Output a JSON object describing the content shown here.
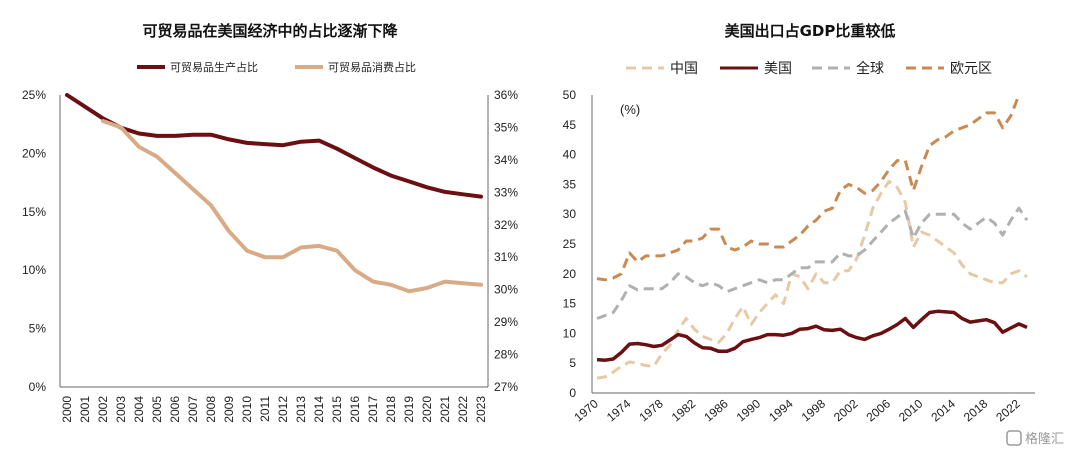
{
  "chart_data": [
    {
      "type": "line",
      "title": "可贸易品在美国经济中的占比逐渐下降",
      "x": [
        2000,
        2001,
        2002,
        2003,
        2004,
        2005,
        2006,
        2007,
        2008,
        2009,
        2010,
        2011,
        2012,
        2013,
        2014,
        2015,
        2016,
        2017,
        2018,
        2019,
        2020,
        2021,
        2022,
        2023
      ],
      "y_left": {
        "ylim": [
          0,
          25
        ],
        "ticks": [
          "0%",
          "5%",
          "10%",
          "15%",
          "20%",
          "25%"
        ]
      },
      "y_right": {
        "ylim": [
          27,
          36
        ],
        "ticks": [
          "27%",
          "28%",
          "29%",
          "30%",
          "31%",
          "32%",
          "33%",
          "34%",
          "35%",
          "36%"
        ]
      },
      "legend_position": "top-center",
      "series": [
        {
          "name": "可贸易品生产占比",
          "axis": "left",
          "color": "#6b0f12",
          "x": [
            2000,
            2001,
            2002,
            2003,
            2004,
            2005,
            2006,
            2007,
            2008,
            2009,
            2010,
            2011,
            2012,
            2013,
            2014,
            2015,
            2016,
            2017,
            2018,
            2019,
            2020,
            2021,
            2022,
            2023
          ],
          "values": [
            25.0,
            24.0,
            23.0,
            22.2,
            21.7,
            21.5,
            21.5,
            21.6,
            21.6,
            21.2,
            20.9,
            20.8,
            20.7,
            21.0,
            21.1,
            20.4,
            19.6,
            18.8,
            18.1,
            17.6,
            17.1,
            16.7,
            16.5,
            16.3
          ]
        },
        {
          "name": "可贸易品消费占比",
          "axis": "right",
          "color": "#d9aa86",
          "x": [
            2002,
            2003,
            2004,
            2005,
            2006,
            2007,
            2008,
            2009,
            2010,
            2011,
            2012,
            2013,
            2014,
            2015,
            2016,
            2017,
            2018,
            2019,
            2020,
            2021,
            2022,
            2023
          ],
          "values": [
            35.2,
            35.0,
            34.4,
            34.1,
            33.6,
            33.1,
            32.6,
            31.8,
            31.2,
            31.0,
            31.0,
            31.3,
            31.35,
            31.2,
            30.6,
            30.25,
            30.15,
            29.95,
            30.05,
            30.25,
            30.2,
            30.15
          ]
        }
      ]
    },
    {
      "type": "line",
      "title": "美国出口占GDP比重较低",
      "unit_label": "(%)",
      "x_ticks": [
        1970,
        1974,
        1978,
        1982,
        1986,
        1990,
        1994,
        1998,
        2002,
        2006,
        2010,
        2014,
        2018,
        2022
      ],
      "ylim": [
        0,
        50
      ],
      "y_ticks": [
        0,
        5,
        10,
        15,
        20,
        25,
        30,
        35,
        40,
        45,
        50
      ],
      "legend_position": "top-center",
      "series": [
        {
          "name": "中国",
          "color": "#e8c9a6",
          "dashed": true,
          "x": [
            1970,
            1971,
            1972,
            1973,
            1974,
            1975,
            1976,
            1977,
            1978,
            1979,
            1980,
            1981,
            1982,
            1983,
            1984,
            1985,
            1986,
            1987,
            1988,
            1989,
            1990,
            1991,
            1992,
            1993,
            1994,
            1995,
            1996,
            1997,
            1998,
            1999,
            2000,
            2001,
            2002,
            2003,
            2004,
            2005,
            2006,
            2007,
            2008,
            2009,
            2010,
            2011,
            2012,
            2013,
            2014,
            2015,
            2016,
            2017,
            2018,
            2019,
            2020,
            2021,
            2022,
            2023
          ],
          "values": [
            2.5,
            2.7,
            3.5,
            4.5,
            5.2,
            5.0,
            4.6,
            4.5,
            6.6,
            8.0,
            10.5,
            12.5,
            10.7,
            9.5,
            9.0,
            8.5,
            10.0,
            12.5,
            14.5,
            11.5,
            13.5,
            15.0,
            16.5,
            15.0,
            20.0,
            19.5,
            17.5,
            20.0,
            18.5,
            18.5,
            20.5,
            20.5,
            22.5,
            26.5,
            31.0,
            33.5,
            35.5,
            34.5,
            32.0,
            24.5,
            27.0,
            26.5,
            25.5,
            24.5,
            23.5,
            21.5,
            20.0,
            19.5,
            19.0,
            18.5,
            18.5,
            20.0,
            20.5,
            19.5
          ]
        },
        {
          "name": "美国",
          "color": "#6b0f12",
          "dashed": false,
          "x": [
            1970,
            1971,
            1972,
            1973,
            1974,
            1975,
            1976,
            1977,
            1978,
            1979,
            1980,
            1981,
            1982,
            1983,
            1984,
            1985,
            1986,
            1987,
            1988,
            1989,
            1990,
            1991,
            1992,
            1993,
            1994,
            1995,
            1996,
            1997,
            1998,
            1999,
            2000,
            2001,
            2002,
            2003,
            2004,
            2005,
            2006,
            2007,
            2008,
            2009,
            2010,
            2011,
            2012,
            2013,
            2014,
            2015,
            2016,
            2017,
            2018,
            2019,
            2020,
            2021,
            2022,
            2023
          ],
          "values": [
            5.6,
            5.5,
            5.7,
            6.8,
            8.2,
            8.3,
            8.1,
            7.8,
            8.0,
            8.9,
            9.8,
            9.5,
            8.4,
            7.6,
            7.5,
            7.0,
            7.0,
            7.5,
            8.6,
            9.0,
            9.3,
            9.8,
            9.8,
            9.7,
            10.0,
            10.7,
            10.8,
            11.2,
            10.6,
            10.5,
            10.7,
            9.8,
            9.3,
            9.0,
            9.6,
            10.0,
            10.7,
            11.5,
            12.5,
            11.0,
            12.3,
            13.5,
            13.7,
            13.6,
            13.5,
            12.5,
            11.9,
            12.1,
            12.3,
            11.8,
            10.2,
            10.9,
            11.6,
            11.0
          ]
        },
        {
          "name": "全球",
          "color": "#b0b0b0",
          "dashed": true,
          "x": [
            1970,
            1971,
            1972,
            1973,
            1974,
            1975,
            1976,
            1977,
            1978,
            1979,
            1980,
            1981,
            1982,
            1983,
            1984,
            1985,
            1986,
            1987,
            1988,
            1989,
            1990,
            1991,
            1992,
            1993,
            1994,
            1995,
            1996,
            1997,
            1998,
            1999,
            2000,
            2001,
            2002,
            2003,
            2004,
            2005,
            2006,
            2007,
            2008,
            2009,
            2010,
            2011,
            2012,
            2013,
            2014,
            2015,
            2016,
            2017,
            2018,
            2019,
            2020,
            2021,
            2022,
            2023
          ],
          "values": [
            12.5,
            13.0,
            13.5,
            15.5,
            18.0,
            17.3,
            17.5,
            17.5,
            17.5,
            18.5,
            20.0,
            19.5,
            18.5,
            18.0,
            18.5,
            18.0,
            17.0,
            17.5,
            18.0,
            18.5,
            19.0,
            18.5,
            19.0,
            19.0,
            20.0,
            21.0,
            21.0,
            22.0,
            22.0,
            22.0,
            23.5,
            23.0,
            23.0,
            24.0,
            25.5,
            27.0,
            28.5,
            29.5,
            30.5,
            26.0,
            28.5,
            30.0,
            30.0,
            30.0,
            30.0,
            28.5,
            27.5,
            28.5,
            29.5,
            28.5,
            26.5,
            29.0,
            31.0,
            29.0
          ]
        },
        {
          "name": "欧元区",
          "color": "#c98a52",
          "dashed": true,
          "x": [
            1970,
            1971,
            1972,
            1973,
            1974,
            1975,
            1976,
            1977,
            1978,
            1979,
            1980,
            1981,
            1982,
            1983,
            1984,
            1985,
            1986,
            1987,
            1988,
            1989,
            1990,
            1991,
            1992,
            1993,
            1994,
            1995,
            1996,
            1997,
            1998,
            1999,
            2000,
            2001,
            2002,
            2003,
            2004,
            2005,
            2006,
            2007,
            2008,
            2009,
            2010,
            2011,
            2012,
            2013,
            2014,
            2015,
            2016,
            2017,
            2018,
            2019,
            2020,
            2021,
            2022
          ],
          "values": [
            19.2,
            19.0,
            19.3,
            20.0,
            23.5,
            22.0,
            23.0,
            23.0,
            23.0,
            23.5,
            24.0,
            25.5,
            25.5,
            26.0,
            27.5,
            27.5,
            24.5,
            24.0,
            24.5,
            25.5,
            25.0,
            25.0,
            24.5,
            24.5,
            25.5,
            26.5,
            28.0,
            29.0,
            30.5,
            31.0,
            34.0,
            35.0,
            34.5,
            33.5,
            34.0,
            35.5,
            37.5,
            39.0,
            39.0,
            34.0,
            38.0,
            41.5,
            42.5,
            43.0,
            44.0,
            44.5,
            45.0,
            46.0,
            47.0,
            47.0,
            44.5,
            46.5,
            50.0
          ]
        }
      ]
    }
  ],
  "watermark": "格隆汇"
}
